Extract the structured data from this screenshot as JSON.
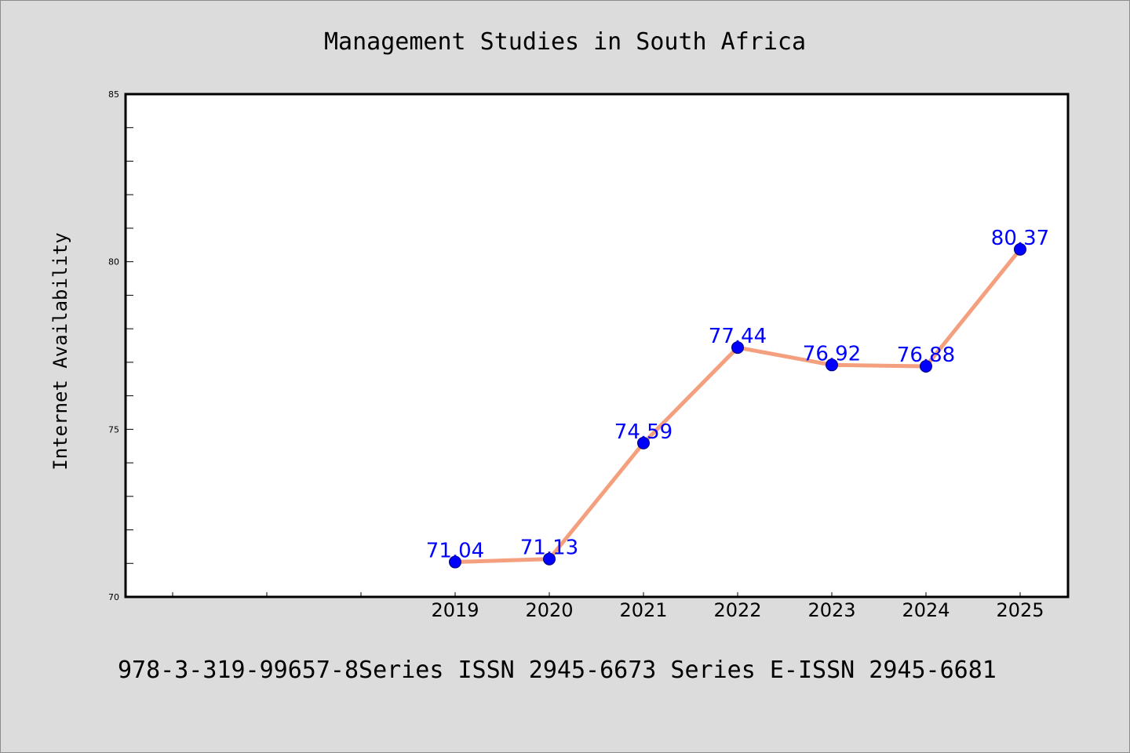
{
  "colors": {
    "background": "#dcdcdc",
    "plot_background": "#ffffff",
    "line": "#f4a07e",
    "marker": "#0000ff",
    "data_label": "#0000ff"
  },
  "footer": "978-3-319-99657-8Series ISSN 2945-6673 Series E-ISSN 2945-6681",
  "chart_data": {
    "type": "line",
    "title": "Management Studies in South Africa",
    "xlabel": "",
    "ylabel": "Internet Availability",
    "x": [
      "2019",
      "2020",
      "2021",
      "2022",
      "2023",
      "2024",
      "2025"
    ],
    "values": [
      71.04,
      71.13,
      74.59,
      77.44,
      76.92,
      76.88,
      80.37
    ],
    "data_labels": [
      "71.04",
      "71.13",
      "74.59",
      "77.44",
      "76.92",
      "76.88",
      "80.37"
    ],
    "ylim": [
      70,
      85
    ],
    "yticks": [
      "70",
      "75",
      "80",
      "85"
    ],
    "grid": false,
    "legend": "none"
  }
}
